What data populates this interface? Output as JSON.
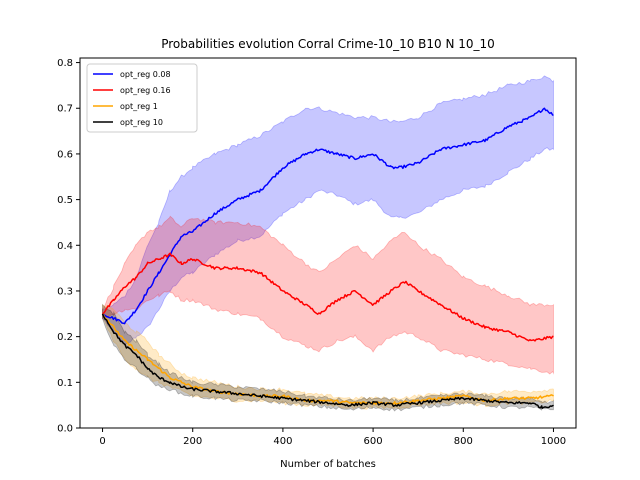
{
  "chart_data": {
    "type": "line",
    "title": "Probabilities evolution Corral Crime-10_10 B10 N 10_10",
    "xlabel": "Number of batches",
    "ylabel": "",
    "xlim": [
      -50,
      1050
    ],
    "ylim": [
      0.0,
      0.81
    ],
    "xticks": [
      0,
      200,
      400,
      600,
      800,
      1000
    ],
    "yticks": [
      0.0,
      0.1,
      0.2,
      0.3,
      0.4,
      0.5,
      0.6,
      0.7,
      0.8
    ],
    "xtick_labels": [
      "0",
      "200",
      "400",
      "600",
      "800",
      "1000"
    ],
    "ytick_labels": [
      "0.0",
      "0.1",
      "0.2",
      "0.3",
      "0.4",
      "0.5",
      "0.6",
      "0.7",
      "0.8"
    ],
    "legend_position": "top-left",
    "grid": false,
    "series": [
      {
        "name": "opt_reg 0.08",
        "color": "#0000ff",
        "band_color": "#0000ff",
        "x": [
          0,
          25,
          50,
          75,
          100,
          125,
          150,
          175,
          200,
          250,
          300,
          350,
          400,
          450,
          480,
          520,
          560,
          600,
          640,
          660,
          700,
          750,
          800,
          850,
          900,
          950,
          980,
          1000
        ],
        "y": [
          0.25,
          0.24,
          0.23,
          0.26,
          0.3,
          0.34,
          0.38,
          0.42,
          0.43,
          0.47,
          0.5,
          0.52,
          0.57,
          0.6,
          0.61,
          0.6,
          0.59,
          0.6,
          0.57,
          0.57,
          0.58,
          0.61,
          0.62,
          0.63,
          0.66,
          0.68,
          0.7,
          0.685
        ],
        "lower": [
          0.24,
          0.21,
          0.18,
          0.2,
          0.22,
          0.26,
          0.3,
          0.33,
          0.34,
          0.38,
          0.41,
          0.42,
          0.47,
          0.5,
          0.52,
          0.51,
          0.49,
          0.5,
          0.46,
          0.46,
          0.47,
          0.5,
          0.52,
          0.53,
          0.56,
          0.59,
          0.61,
          0.61
        ],
        "upper": [
          0.26,
          0.27,
          0.29,
          0.33,
          0.4,
          0.45,
          0.52,
          0.55,
          0.57,
          0.6,
          0.62,
          0.64,
          0.67,
          0.7,
          0.7,
          0.69,
          0.68,
          0.68,
          0.67,
          0.67,
          0.68,
          0.71,
          0.72,
          0.73,
          0.75,
          0.76,
          0.77,
          0.76
        ]
      },
      {
        "name": "opt_reg 0.16",
        "color": "#ff0000",
        "band_color": "#ff0000",
        "x": [
          0,
          25,
          50,
          75,
          100,
          125,
          150,
          175,
          200,
          250,
          300,
          350,
          400,
          450,
          480,
          520,
          560,
          600,
          640,
          670,
          700,
          750,
          800,
          850,
          900,
          950,
          1000
        ],
        "y": [
          0.25,
          0.28,
          0.31,
          0.33,
          0.36,
          0.37,
          0.38,
          0.36,
          0.37,
          0.35,
          0.35,
          0.34,
          0.3,
          0.27,
          0.25,
          0.28,
          0.3,
          0.27,
          0.3,
          0.32,
          0.3,
          0.27,
          0.24,
          0.22,
          0.21,
          0.19,
          0.2
        ],
        "lower": [
          0.24,
          0.25,
          0.26,
          0.26,
          0.28,
          0.29,
          0.3,
          0.28,
          0.28,
          0.26,
          0.25,
          0.24,
          0.2,
          0.18,
          0.17,
          0.19,
          0.2,
          0.17,
          0.2,
          0.21,
          0.2,
          0.17,
          0.16,
          0.15,
          0.14,
          0.13,
          0.12
        ],
        "upper": [
          0.26,
          0.31,
          0.36,
          0.4,
          0.43,
          0.44,
          0.46,
          0.44,
          0.46,
          0.45,
          0.45,
          0.44,
          0.4,
          0.36,
          0.34,
          0.37,
          0.4,
          0.37,
          0.41,
          0.43,
          0.4,
          0.37,
          0.33,
          0.31,
          0.29,
          0.27,
          0.27
        ]
      },
      {
        "name": "opt_reg 1",
        "color": "#ffa500",
        "band_color": "#ffa500",
        "x": [
          0,
          25,
          50,
          75,
          100,
          125,
          150,
          175,
          200,
          250,
          300,
          350,
          400,
          450,
          500,
          550,
          600,
          650,
          700,
          750,
          800,
          850,
          900,
          950,
          1000
        ],
        "y": [
          0.25,
          0.22,
          0.19,
          0.17,
          0.15,
          0.13,
          0.11,
          0.1,
          0.09,
          0.08,
          0.075,
          0.07,
          0.07,
          0.06,
          0.06,
          0.055,
          0.055,
          0.055,
          0.06,
          0.065,
          0.07,
          0.06,
          0.065,
          0.065,
          0.07
        ],
        "lower": [
          0.24,
          0.19,
          0.15,
          0.13,
          0.11,
          0.1,
          0.09,
          0.08,
          0.07,
          0.065,
          0.06,
          0.06,
          0.055,
          0.05,
          0.05,
          0.045,
          0.045,
          0.045,
          0.05,
          0.055,
          0.055,
          0.05,
          0.055,
          0.055,
          0.06
        ],
        "upper": [
          0.27,
          0.26,
          0.23,
          0.21,
          0.19,
          0.16,
          0.14,
          0.12,
          0.11,
          0.1,
          0.09,
          0.085,
          0.085,
          0.075,
          0.07,
          0.065,
          0.065,
          0.065,
          0.07,
          0.075,
          0.08,
          0.075,
          0.08,
          0.08,
          0.085
        ]
      },
      {
        "name": "opt_reg 10",
        "color": "#000000",
        "band_color": "#000000",
        "x": [
          0,
          25,
          50,
          75,
          100,
          125,
          150,
          175,
          200,
          250,
          300,
          350,
          400,
          450,
          500,
          550,
          600,
          650,
          700,
          750,
          800,
          850,
          900,
          950,
          975,
          1000
        ],
        "y": [
          0.25,
          0.21,
          0.18,
          0.16,
          0.13,
          0.11,
          0.1,
          0.09,
          0.085,
          0.08,
          0.075,
          0.07,
          0.065,
          0.06,
          0.055,
          0.05,
          0.055,
          0.05,
          0.055,
          0.06,
          0.065,
          0.06,
          0.055,
          0.055,
          0.045,
          0.05
        ],
        "lower": [
          0.24,
          0.18,
          0.15,
          0.13,
          0.11,
          0.09,
          0.085,
          0.075,
          0.07,
          0.065,
          0.06,
          0.06,
          0.055,
          0.05,
          0.045,
          0.04,
          0.045,
          0.04,
          0.045,
          0.05,
          0.055,
          0.05,
          0.045,
          0.045,
          0.04,
          0.04
        ],
        "upper": [
          0.27,
          0.25,
          0.21,
          0.19,
          0.16,
          0.14,
          0.12,
          0.11,
          0.1,
          0.095,
          0.09,
          0.085,
          0.08,
          0.07,
          0.065,
          0.06,
          0.065,
          0.06,
          0.065,
          0.07,
          0.075,
          0.07,
          0.065,
          0.065,
          0.055,
          0.06
        ]
      }
    ]
  }
}
